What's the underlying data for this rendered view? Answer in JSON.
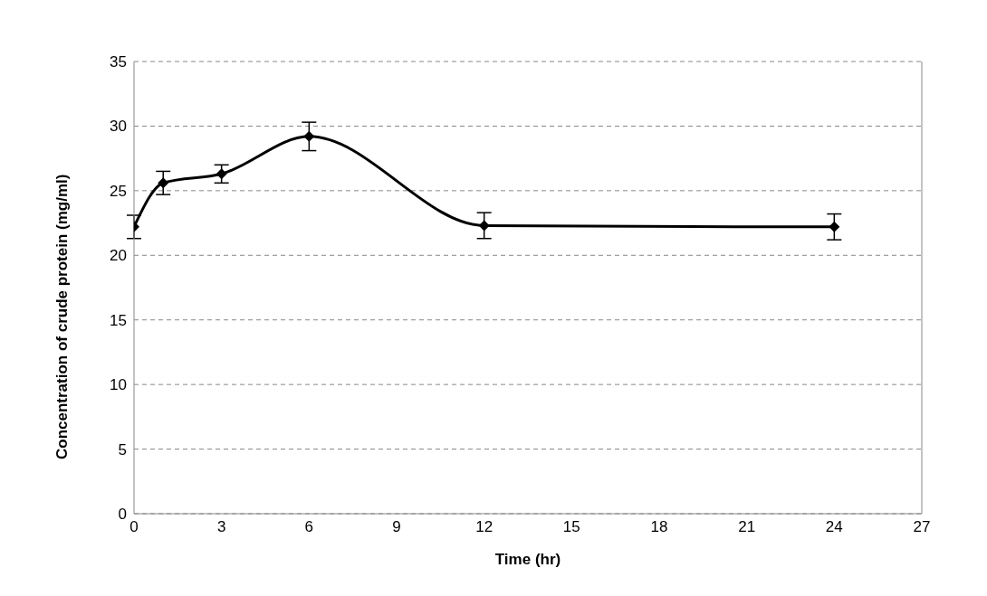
{
  "chart_data": {
    "type": "line",
    "xlabel": "Time (hr)",
    "ylabel": "Concentration of crude protein (mg/ml)",
    "x": [
      0,
      1,
      3,
      6,
      12,
      24
    ],
    "series": [
      {
        "color": "#000000",
        "values": [
          22.2,
          25.6,
          26.3,
          29.2,
          22.3,
          22.2
        ],
        "errors": [
          0.9,
          0.9,
          0.7,
          1.1,
          1.0,
          1.0
        ]
      }
    ],
    "xlim": [
      0,
      27
    ],
    "xticks": [
      0,
      3,
      6,
      9,
      12,
      15,
      18,
      21,
      24,
      27
    ],
    "ylim": [
      0,
      35
    ],
    "yticks": [
      0,
      5,
      10,
      15,
      20,
      25,
      30,
      35
    ],
    "grid": "y",
    "marker": "diamond",
    "line_style": "solid"
  }
}
